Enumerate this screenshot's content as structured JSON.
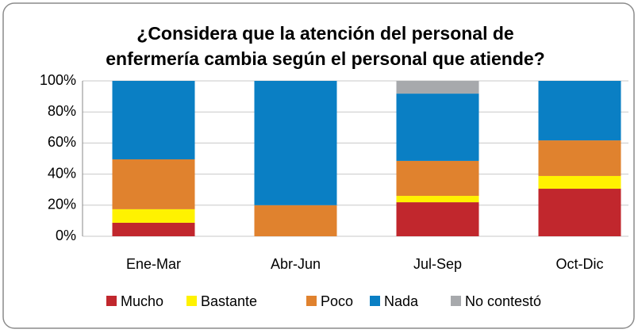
{
  "chart_data": {
    "type": "stacked_bar",
    "title": "¿Considera que la atención del personal de enfermería cambia según el personal que atiende?",
    "categories": [
      "Ene-Mar",
      "Abr-Jun",
      "Jul-Sep",
      "Oct-Dic"
    ],
    "series": [
      {
        "name": "Mucho",
        "color": "#c1272d",
        "values": [
          8.7,
          0,
          21.9,
          30.6
        ]
      },
      {
        "name": "Bastante",
        "color": "#fff200",
        "values": [
          8.7,
          0,
          4.1,
          8.2
        ]
      },
      {
        "name": "Poco",
        "color": "#e0822e",
        "values": [
          32.1,
          20,
          22.5,
          22.9
        ]
      },
      {
        "name": "Nada",
        "color": "#0a7fc4",
        "values": [
          50.5,
          80,
          43.3,
          38.3
        ]
      },
      {
        "name": "No contestó",
        "color": "#a7a9ac",
        "values": [
          0,
          0,
          8.2,
          0
        ]
      }
    ],
    "ylim": [
      0,
      100
    ],
    "yticks": [
      {
        "value": 0,
        "label": "0%"
      },
      {
        "value": 20,
        "label": "20%"
      },
      {
        "value": 40,
        "label": "40%"
      },
      {
        "value": 60,
        "label": "60%"
      },
      {
        "value": 80,
        "label": "80%"
      },
      {
        "value": 100,
        "label": "100%"
      }
    ],
    "grid": true,
    "legend": "bottom"
  }
}
